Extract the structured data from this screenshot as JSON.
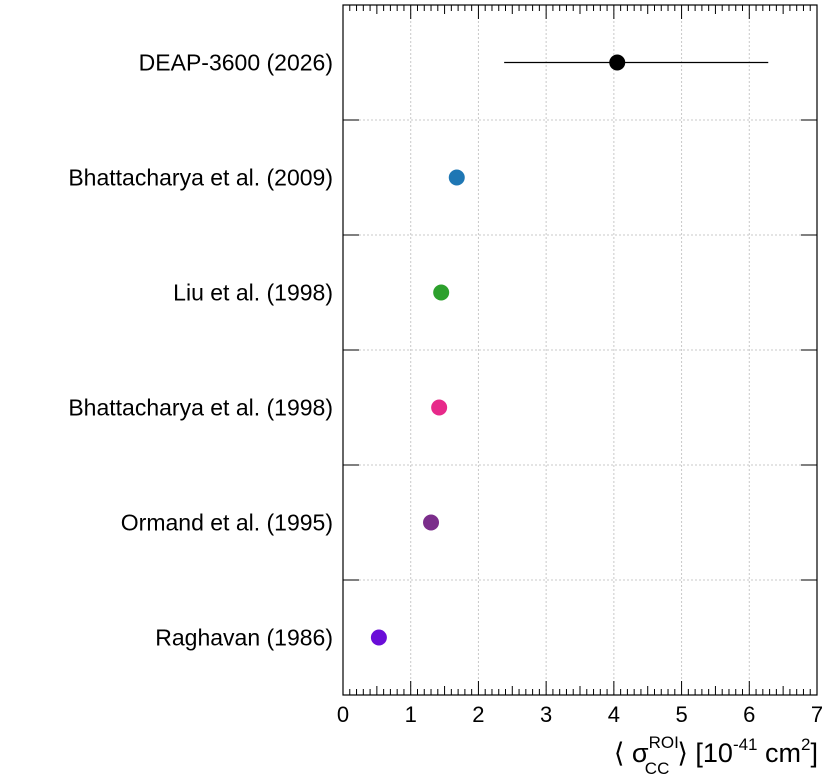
{
  "chart_data": {
    "type": "scatter",
    "orientation": "horizontal",
    "title": "",
    "xlabel": {
      "prefix": "⟨ σ",
      "superscript": "ROI",
      "subscript": "CC",
      "suffix_open": "⟩ [10",
      "exponent": "-41",
      "unit": " cm",
      "unit_exp": "2",
      "close": "]"
    },
    "ylabel": "",
    "xlim": [
      0,
      7
    ],
    "x_ticks": [
      "0",
      "1",
      "2",
      "3",
      "4",
      "5",
      "6",
      "7"
    ],
    "grid": true,
    "categories": [
      "DEAP-3600 (2026)",
      "Bhattacharya et al. (2009)",
      "Liu et al. (1998)",
      "Bhattacharya et al. (1998)",
      "Ormand et al. (1995)",
      "Raghavan (1986)"
    ],
    "points": [
      {
        "label": "DEAP-3600 (2026)",
        "value": 4.05,
        "err_low": 2.38,
        "err_high": 6.28,
        "color": "#000000"
      },
      {
        "label": "Bhattacharya et al. (2009)",
        "value": 1.68,
        "color": "#1f77b4"
      },
      {
        "label": "Liu et al. (1998)",
        "value": 1.45,
        "color": "#2ca02c"
      },
      {
        "label": "Bhattacharya et al. (1998)",
        "value": 1.42,
        "color": "#e7298a"
      },
      {
        "label": "Ormand et al. (1995)",
        "value": 1.3,
        "color": "#7b2d8b"
      },
      {
        "label": "Raghavan (1986)",
        "value": 0.53,
        "color": "#6a0dd8"
      }
    ]
  }
}
